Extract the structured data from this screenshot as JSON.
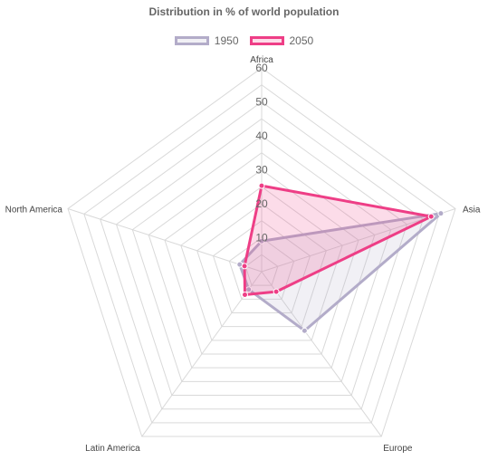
{
  "chart_data": {
    "type": "radar",
    "title": "Distribution in % of world population",
    "categories": [
      "Africa",
      "Asia",
      "Europe",
      "Latin America",
      "North America"
    ],
    "r_ticks": [
      10,
      20,
      30,
      40,
      50,
      60
    ],
    "r_range": [
      0,
      60
    ],
    "legend_position": "top",
    "series": [
      {
        "name": "1950",
        "values": [
          9,
          55.5,
          21.5,
          6.5,
          6.8
        ],
        "color": "#b3acc9",
        "fill": "rgba(179,172,201,0.18)"
      },
      {
        "name": "2050",
        "values": [
          25.3,
          52.5,
          7.3,
          8.4,
          5.3
        ],
        "color": "#ee3e86",
        "fill": "rgba(238,62,134,0.18)"
      }
    ]
  }
}
